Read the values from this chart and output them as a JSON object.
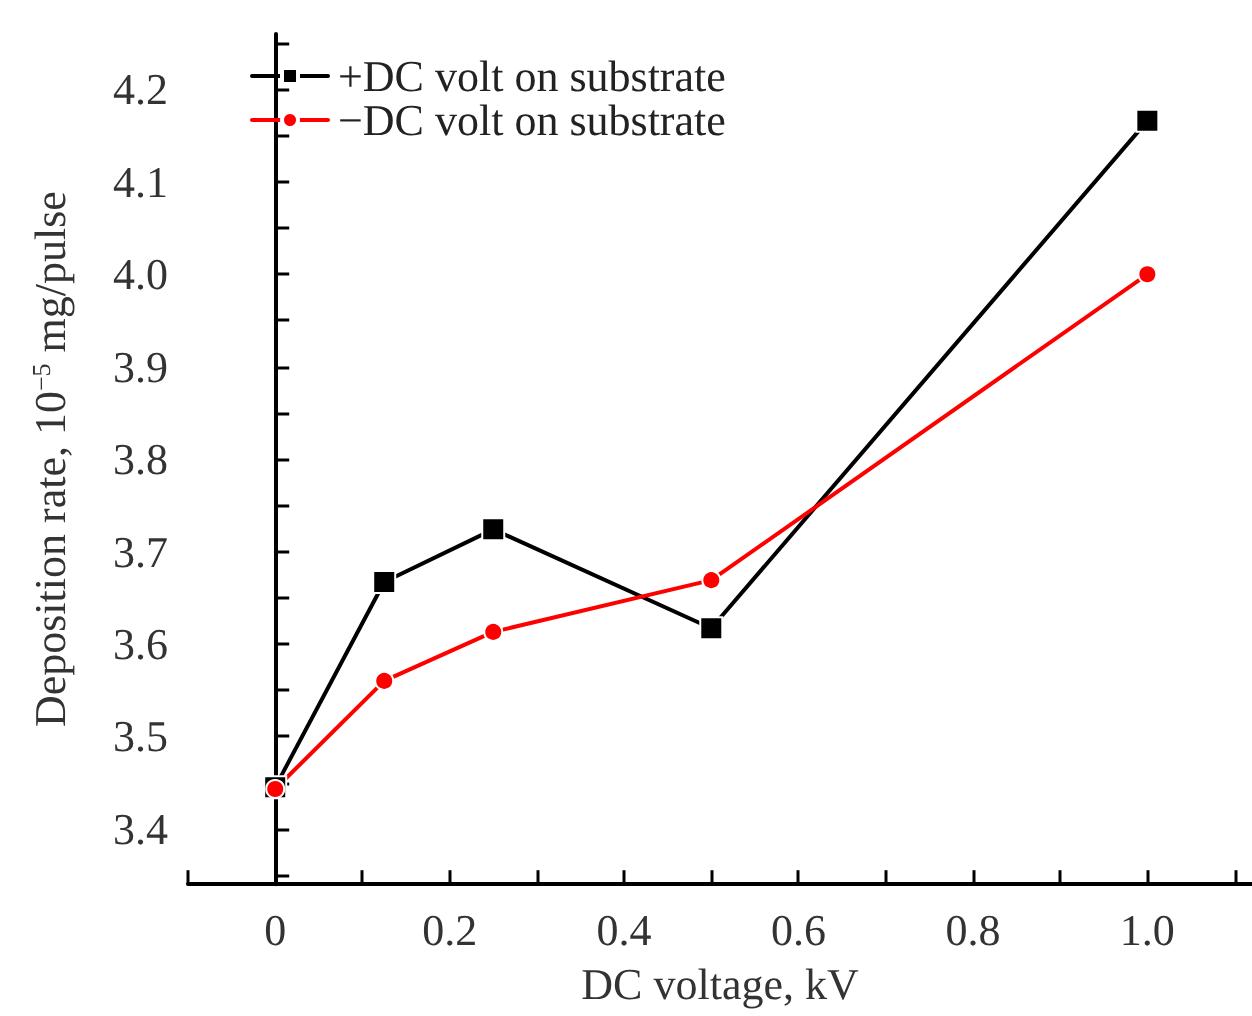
{
  "chart_data": {
    "type": "line",
    "xlabel": "DC voltage, kV",
    "ylabel": "Deposition rate, 10$^{−5}$ mg/pulse",
    "series": [
      {
        "name": "+DC volt on substrate",
        "color": "#000000",
        "marker": "square",
        "x": [
          0,
          0.125,
          0.25,
          0.5,
          1.0
        ],
        "values": [
          3.445,
          3.667,
          3.724,
          3.617,
          4.166
        ]
      },
      {
        "name": "−DC volt on substrate",
        "color": "#ff0000",
        "marker": "circle",
        "x": [
          0,
          0.125,
          0.25,
          0.5,
          1.0
        ],
        "values": [
          3.443,
          3.56,
          3.613,
          3.669,
          4.0
        ]
      }
    ],
    "xlim": [
      -0.1,
      1.12
    ],
    "xticks": [
      {
        "value": -0.1,
        "label": null
      },
      0,
      {
        "value": 0.1,
        "label": null
      },
      0.2,
      {
        "value": 0.3,
        "label": null
      },
      0.4,
      {
        "value": 0.5,
        "label": null
      },
      0.6,
      {
        "value": 0.7,
        "label": null
      },
      0.8,
      {
        "value": 0.9,
        "label": null
      },
      {
        "value": 1.0,
        "label": "1.0"
      },
      {
        "value": 1.1,
        "label": null
      }
    ],
    "ylim": [
      3.34,
      4.26
    ],
    "yticks": [
      {
        "value": 3.35,
        "label": null
      },
      3.4,
      {
        "value": 3.45,
        "label": null
      },
      3.5,
      {
        "value": 3.55,
        "label": null
      },
      3.6,
      {
        "value": 3.65,
        "label": null
      },
      3.7,
      {
        "value": 3.75,
        "label": null
      },
      3.8,
      {
        "value": 3.85,
        "label": null
      },
      3.9,
      {
        "value": 3.95,
        "label": null
      },
      {
        "value": 4.0,
        "label": "4.0"
      },
      {
        "value": 4.05,
        "label": null
      },
      4.1,
      {
        "value": 4.15,
        "label": null
      },
      4.2,
      {
        "value": 4.25,
        "label": null
      }
    ],
    "grid": false,
    "legend": "top left",
    "line_style": "solid"
  }
}
